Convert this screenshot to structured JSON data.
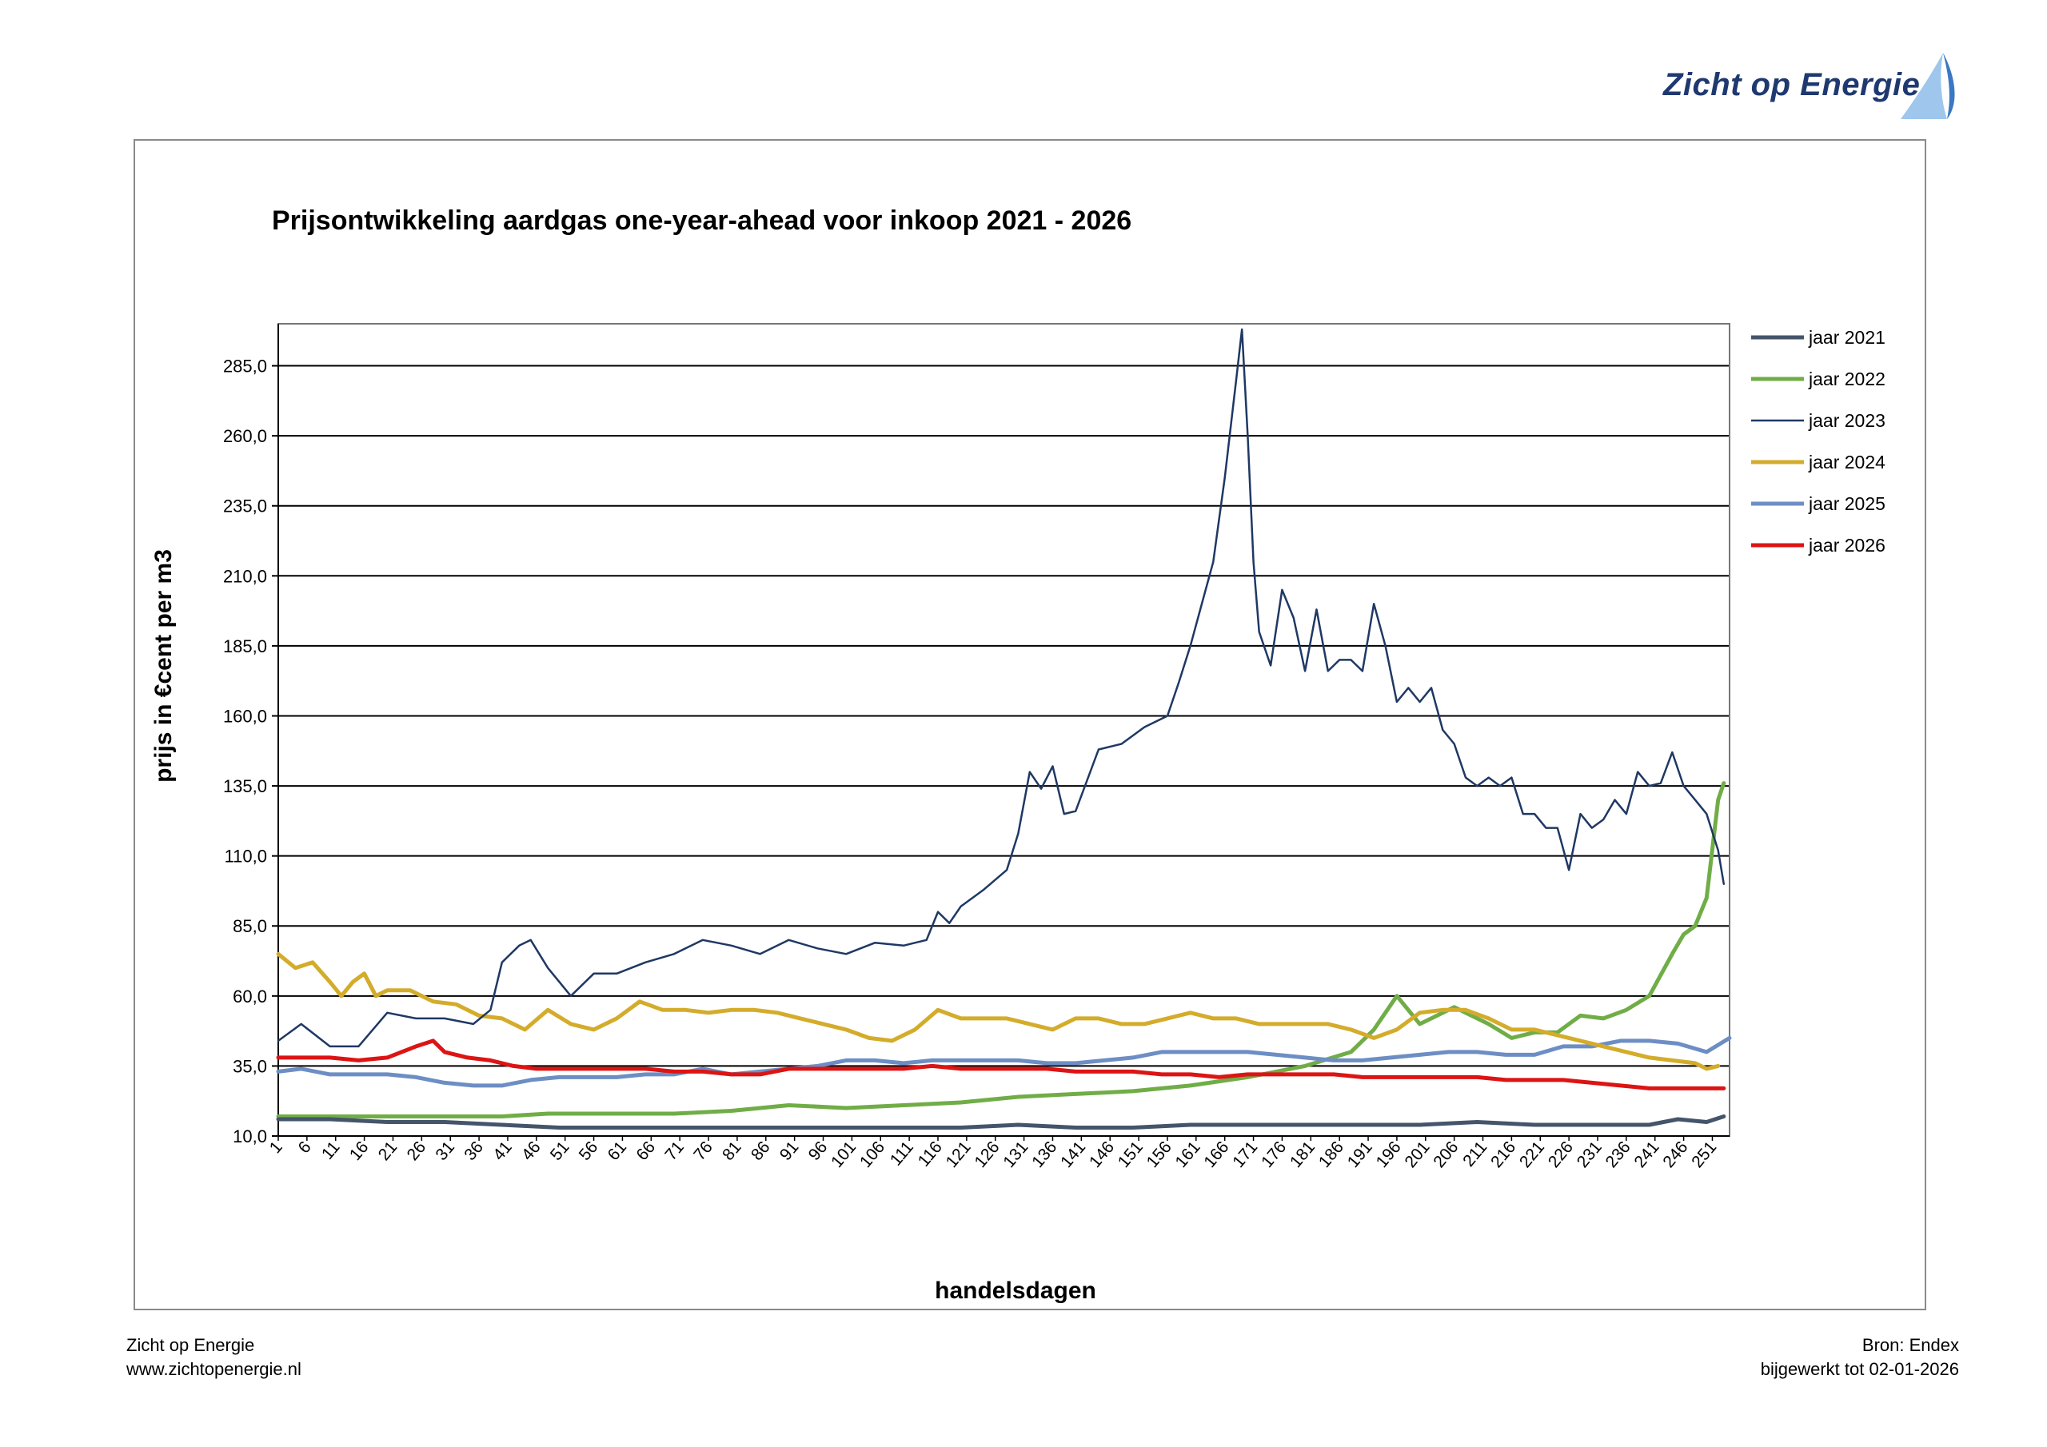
{
  "header": {
    "logo_text": "Zicht op Energie"
  },
  "footer": {
    "org_name": "Zicht op Energie",
    "website": "www.zichtopenergie.nl",
    "source": "Bron: Endex",
    "updated": "bijgewerkt tot 02-01-2026"
  },
  "colors": {
    "jaar_2021": "#44546a",
    "jaar_2022": "#70ad47",
    "jaar_2023": "#1f3864",
    "jaar_2024": "#d4ac2b",
    "jaar_2025": "#6d8ec4",
    "jaar_2026": "#dd1414"
  },
  "chart_data": {
    "type": "line",
    "title": "Prijsontwikkeling aardgas one-year-ahead voor inkoop 2021 - 2026",
    "xlabel": "handelsdagen",
    "ylabel": "prijs in €cent  per m3",
    "ylim": [
      10,
      300
    ],
    "yticks": [
      "10,0",
      "35,0",
      "60,0",
      "85,0",
      "110,0",
      "135,0",
      "160,0",
      "185,0",
      "210,0",
      "235,0",
      "260,0",
      "285,0"
    ],
    "ytick_values": [
      10,
      35,
      60,
      85,
      110,
      135,
      160,
      185,
      210,
      235,
      260,
      285
    ],
    "xlim": [
      1,
      254
    ],
    "xticks": [
      "1",
      "6",
      "11",
      "16",
      "21",
      "26",
      "31",
      "36",
      "41",
      "46",
      "51",
      "56",
      "61",
      "66",
      "71",
      "76",
      "81",
      "86",
      "91",
      "96",
      "101",
      "106",
      "111",
      "116",
      "121",
      "126",
      "131",
      "136",
      "141",
      "146",
      "151",
      "156",
      "161",
      "166",
      "171",
      "176",
      "181",
      "186",
      "191",
      "196",
      "201",
      "206",
      "211",
      "216",
      "221",
      "226",
      "231",
      "236",
      "241",
      "246",
      "251"
    ],
    "legend_position": "right",
    "grid": true,
    "series": [
      {
        "name": "jaar 2021",
        "x": [
          1,
          10,
          20,
          30,
          40,
          50,
          60,
          70,
          80,
          90,
          100,
          110,
          120,
          130,
          140,
          150,
          160,
          170,
          180,
          190,
          200,
          210,
          220,
          230,
          240,
          245,
          250,
          253
        ],
        "values": [
          16,
          16,
          15,
          15,
          14,
          13,
          13,
          13,
          13,
          13,
          13,
          13,
          13,
          14,
          13,
          13,
          14,
          14,
          14,
          14,
          14,
          15,
          14,
          14,
          14,
          16,
          15,
          17
        ]
      },
      {
        "name": "jaar 2022",
        "x": [
          1,
          20,
          40,
          48,
          60,
          70,
          80,
          90,
          100,
          110,
          120,
          130,
          140,
          150,
          160,
          170,
          180,
          188,
          192,
          196,
          200,
          206,
          212,
          216,
          220,
          224,
          228,
          232,
          236,
          240,
          244,
          246,
          248,
          250,
          252,
          253
        ],
        "values": [
          17,
          17,
          17,
          18,
          18,
          18,
          19,
          21,
          20,
          21,
          22,
          24,
          25,
          26,
          28,
          31,
          35,
          40,
          48,
          60,
          50,
          56,
          50,
          45,
          47,
          47,
          53,
          52,
          55,
          60,
          75,
          82,
          85,
          95,
          130,
          136
        ]
      },
      {
        "name": "jaar 2023",
        "x": [
          1,
          5,
          10,
          15,
          20,
          25,
          30,
          35,
          38,
          40,
          43,
          45,
          48,
          52,
          56,
          60,
          65,
          70,
          75,
          80,
          85,
          90,
          95,
          100,
          105,
          110,
          114,
          116,
          118,
          120,
          124,
          128,
          130,
          132,
          134,
          136,
          138,
          140,
          144,
          148,
          152,
          156,
          158,
          160,
          162,
          164,
          166,
          168,
          169,
          170,
          171,
          172,
          174,
          176,
          178,
          180,
          182,
          184,
          186,
          188,
          190,
          192,
          194,
          196,
          198,
          200,
          202,
          204,
          206,
          208,
          210,
          212,
          214,
          216,
          218,
          220,
          222,
          224,
          226,
          228,
          230,
          232,
          234,
          236,
          238,
          240,
          242,
          244,
          246,
          248,
          250,
          252,
          253
        ],
        "values": [
          44,
          50,
          42,
          42,
          54,
          52,
          52,
          50,
          55,
          72,
          78,
          80,
          70,
          60,
          68,
          68,
          72,
          75,
          80,
          78,
          75,
          80,
          77,
          75,
          79,
          78,
          80,
          90,
          86,
          92,
          98,
          105,
          118,
          140,
          134,
          142,
          125,
          126,
          148,
          150,
          156,
          160,
          172,
          185,
          200,
          215,
          245,
          280,
          298,
          260,
          215,
          190,
          178,
          205,
          195,
          176,
          198,
          176,
          180,
          180,
          176,
          200,
          185,
          165,
          170,
          165,
          170,
          155,
          150,
          138,
          135,
          138,
          135,
          138,
          125,
          125,
          120,
          120,
          105,
          125,
          120,
          123,
          130,
          125,
          140,
          135,
          136,
          147,
          135,
          130,
          125,
          112,
          100
        ]
      },
      {
        "name": "jaar 2024",
        "x": [
          1,
          4,
          7,
          10,
          12,
          14,
          16,
          18,
          20,
          24,
          28,
          32,
          36,
          40,
          44,
          48,
          52,
          56,
          60,
          64,
          68,
          72,
          76,
          80,
          84,
          88,
          92,
          96,
          100,
          104,
          108,
          112,
          116,
          120,
          124,
          128,
          132,
          136,
          140,
          144,
          148,
          152,
          156,
          160,
          164,
          168,
          172,
          176,
          180,
          184,
          188,
          192,
          196,
          200,
          204,
          208,
          212,
          216,
          220,
          224,
          228,
          232,
          236,
          240,
          244,
          248,
          250,
          252
        ],
        "values": [
          75,
          70,
          72,
          65,
          60,
          65,
          68,
          60,
          62,
          62,
          58,
          57,
          53,
          52,
          48,
          55,
          50,
          48,
          52,
          58,
          55,
          55,
          54,
          55,
          55,
          54,
          52,
          50,
          48,
          45,
          44,
          48,
          55,
          52,
          52,
          52,
          50,
          48,
          52,
          52,
          50,
          50,
          52,
          54,
          52,
          52,
          50,
          50,
          50,
          50,
          48,
          45,
          48,
          54,
          55,
          55,
          52,
          48,
          48,
          46,
          44,
          42,
          40,
          38,
          37,
          36,
          34,
          35
        ]
      },
      {
        "name": "jaar 2025",
        "x": [
          1,
          5,
          10,
          15,
          20,
          25,
          30,
          35,
          40,
          45,
          50,
          55,
          60,
          65,
          70,
          75,
          80,
          85,
          90,
          95,
          100,
          105,
          110,
          115,
          120,
          125,
          130,
          135,
          140,
          145,
          150,
          155,
          160,
          165,
          170,
          175,
          180,
          185,
          190,
          195,
          200,
          205,
          210,
          215,
          220,
          225,
          230,
          235,
          240,
          245,
          250,
          254
        ],
        "values": [
          33,
          34,
          32,
          32,
          32,
          31,
          29,
          28,
          28,
          30,
          31,
          31,
          31,
          32,
          32,
          34,
          32,
          33,
          34,
          35,
          37,
          37,
          36,
          37,
          37,
          37,
          37,
          36,
          36,
          37,
          38,
          40,
          40,
          40,
          40,
          39,
          38,
          37,
          37,
          38,
          39,
          40,
          40,
          39,
          39,
          42,
          42,
          44,
          44,
          43,
          40,
          45
        ]
      },
      {
        "name": "jaar 2026",
        "x": [
          1,
          6,
          10,
          15,
          20,
          25,
          28,
          30,
          34,
          38,
          42,
          46,
          50,
          55,
          60,
          65,
          70,
          75,
          80,
          85,
          90,
          95,
          100,
          105,
          110,
          115,
          120,
          125,
          130,
          135,
          140,
          145,
          150,
          155,
          160,
          165,
          170,
          175,
          180,
          185,
          190,
          195,
          200,
          205,
          210,
          215,
          220,
          225,
          230,
          235,
          240,
          245,
          250,
          253
        ],
        "values": [
          38,
          38,
          38,
          37,
          38,
          42,
          44,
          40,
          38,
          37,
          35,
          34,
          34,
          34,
          34,
          34,
          33,
          33,
          32,
          32,
          34,
          34,
          34,
          34,
          34,
          35,
          34,
          34,
          34,
          34,
          33,
          33,
          33,
          32,
          32,
          31,
          32,
          32,
          32,
          32,
          31,
          31,
          31,
          31,
          31,
          30,
          30,
          30,
          29,
          28,
          27,
          27,
          27,
          27
        ]
      }
    ]
  }
}
